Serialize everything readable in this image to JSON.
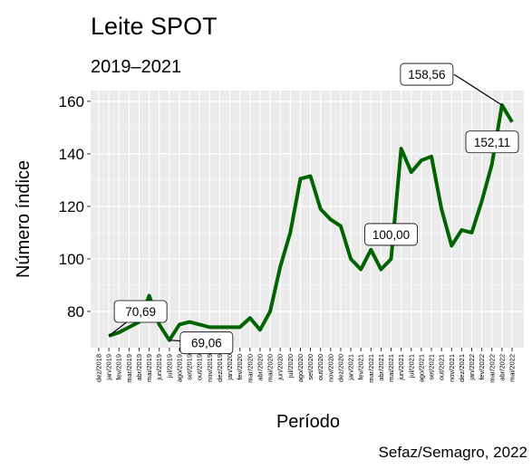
{
  "chart_data": {
    "type": "line",
    "title": "Leite SPOT",
    "subtitle": "2019–2021",
    "x_label": "Período",
    "y_label": "Número índice",
    "caption": "Sefaz/Semagro, 2022",
    "categories": [
      "dez/2018",
      "jan/2019",
      "fev/2019",
      "mar/2019",
      "abr/2019",
      "mai/2019",
      "jun/2019",
      "jul/2019",
      "ago/2019",
      "set/2019",
      "out/2019",
      "nov/2019",
      "dez/2019",
      "jan/2020",
      "fev/2020",
      "mar/2020",
      "abr/2020",
      "mai/2020",
      "jun/2020",
      "jul/2020",
      "ago/2020",
      "set/2020",
      "out/2020",
      "nov/2020",
      "dez/2020",
      "jan/2021",
      "fev/2021",
      "mar/2021",
      "abr/2021",
      "mai/2021",
      "jun/2021",
      "jul/2021",
      "ago/2021",
      "set/2021",
      "out/2021",
      "nov/2021",
      "dez/2021",
      "jan/2022",
      "fev/2022",
      "mar/2022",
      "abr/2022",
      "mai/2022"
    ],
    "values": [
      null,
      70.69,
      72,
      74,
      76,
      86,
      75,
      69.06,
      75,
      76,
      75,
      74,
      74,
      74,
      74,
      77.5,
      73,
      80,
      97,
      110,
      130.5,
      131.5,
      119,
      115,
      112.5,
      100,
      96,
      103.5,
      96,
      100.0,
      142,
      133,
      137.5,
      139,
      119,
      105,
      111,
      110,
      122,
      136,
      158.56,
      152.11
    ],
    "value_labels": [
      null,
      "70,69",
      null,
      null,
      null,
      null,
      null,
      "69,06",
      null,
      null,
      null,
      null,
      null,
      null,
      null,
      null,
      null,
      null,
      null,
      null,
      null,
      null,
      null,
      null,
      null,
      null,
      null,
      null,
      null,
      "100,00",
      null,
      null,
      null,
      null,
      null,
      null,
      null,
      null,
      null,
      null,
      "158,56",
      "152,11"
    ],
    "color": "#006400",
    "ylim": [
      66.2,
      164.1
    ],
    "yticks": [
      80,
      100,
      120,
      140,
      160
    ],
    "grid": true
  }
}
